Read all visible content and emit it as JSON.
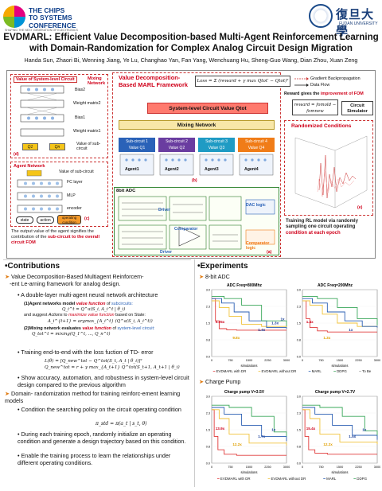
{
  "header": {
    "logo_left": {
      "line1": "THE CHIPS",
      "line2": "TO SYSTEMS",
      "line2b": "CONFERENCE",
      "tagline": "SHAPING THE NEXT GENERATION OF ELECTRONICS"
    },
    "logo_right": {
      "cn": "復旦大學",
      "en": "FUDAN UNIVERSITY"
    },
    "title_line1": "EVDMARL: Efficient Value Decomposition-based Multi-Agent Reinforcement Learning",
    "title_line2": "with Domain-Randomization for Complex Analog Circuit Design Migration",
    "authors": "Handa Sun, Zhaori Bi, Wenning Jiang, Ye Lu, Changhao Yan, Fan Yang, Wenchuang Hu, Sheng-Guo Wang, Dian Zhou, Xuan Zeng"
  },
  "framework": {
    "mixing_net_panel": {
      "title": "Value of System-level Circuit",
      "side_title": "Mixing Network",
      "layers": [
        "Bias2",
        "Weight matrix2",
        "Bias1",
        "Weight matrix1"
      ],
      "q1": "Q1",
      "qn": "Qn",
      "value_sub": "Value of sub-circuit",
      "tag": "(d)"
    },
    "agent_panel": {
      "title": "Agent Network",
      "value_sub": "Value of sub-circuit",
      "layers": [
        "FC layer",
        "MLP",
        "encoder"
      ],
      "state": "state",
      "action": "action",
      "operating": "operating condition",
      "tag": "(c)",
      "caption_pre": "The output value of the agent signifies the contribution of the ",
      "caption_red": "sub-circuit to the overall circuit FOM"
    },
    "center": {
      "heading1": "Value Decomposition-",
      "heading2": "Based MARL Framework",
      "loss": "Loss = Σ (reward + γ max Qtot′ − Qtot)²",
      "system_value": "System-level Circuit Value Qtot",
      "mixing": "Mixing Network",
      "subs": [
        {
          "name": "Sub-circuit 1",
          "val": "Value Q1",
          "color": "#2a62b8"
        },
        {
          "name": "Sub-circuit 2",
          "val": "Value Q2",
          "color": "#6a3da0"
        },
        {
          "name": "Sub-circuit 3",
          "val": "Value Q3",
          "color": "#1f9bc4"
        },
        {
          "name": "Sub-circuit 4",
          "val": "Value Q4",
          "color": "#f07c18"
        }
      ],
      "agents": [
        "Agent1",
        "Agent2",
        "Agent3",
        "Agent4"
      ],
      "tag": "(b)",
      "adc": "8bit ADC",
      "driver": "Driver",
      "comparator": "Comparator",
      "dac": "DAC logic",
      "comp_logic": "Comparator logic",
      "tag_a": "(a)"
    },
    "right": {
      "legend_grad": "Gradient Backpropagation",
      "legend_flow": "Data Flow",
      "reward_pre": "Reward gives the ",
      "reward_red": "improvement of FOM",
      "reward_formula": "reward = fomold − fomnew",
      "simulator": "Circuit Simulator",
      "rand_title": "Randomized Conditions",
      "tag": "(e)",
      "caption_pre": "Training RL model via randomly sampling one circuit operating ",
      "caption_red": "condition at each epoch"
    }
  },
  "contributions": {
    "heading": "Contributions",
    "b1_pre": "Value Decomposition-Based Multiagent Reinforcem-",
    "b1_post": "-ent Le-arning framework for analog design.",
    "sub1": "A double-layer multi-agent neural network architecture",
    "agent_line_pre": "(1)Agent networks model ",
    "agent_line_red": "value function",
    "agent_line_mid": " of ",
    "agent_line_blue": "subcircuits:",
    "agent_eq": "Q_i^t = Q^a(S_i, A_i^t | θ_i)",
    "agent_line2_pre": "and suggest ",
    "agent_line2_it": "Actions",
    "agent_line2_mid": " to ",
    "agent_line2_red": "maximize value function",
    "agent_line2_post": " based on State:",
    "agent_eq2": "A_i^{t+1} = argmax_{A_i^t} (Q^a(S_i, A_i^t))",
    "mix_line_pre": "(2)Mixing network evaluates ",
    "mix_line_red": "value function",
    "mix_line_mid": " of ",
    "mix_line_blue": "system-level circuit:",
    "mix_eq": "Q_tot^t = mixing(Q_1^t, ..., Q_n^t)",
    "sub2": "Training end-to-end with the loss fuction of TD- error",
    "loss_eq1": "L(θ) = [Q_new^tot − Q^tot(S_t, A_t | θ_i)]²",
    "loss_eq2": "Q_new^tot = r + γ max_{A_t+1} Q^tot(S_t+1, A_t+1 | θ_i)",
    "sub3": "Show accuracy, automation, and robustness in system-level circuit design compared to the previous algorithm",
    "b2": "Domain- randomization method for training reinforc-ement learning models",
    "sub4": "Condition the searching policy on the circuit operating condition",
    "policy_eq": "π_std = π(a_t | s_t, θ)",
    "sub5": "During each training epoch, randomly initialize an operating condition and generate a design trajectory based on this condition.",
    "sub6": "Enable the training process to learn the relationships under different operating conditions."
  },
  "experiments": {
    "heading": "Experiments",
    "adc_label": "8-bit ADC",
    "cp_label": "Charge Pump",
    "legend_adc": [
      "EVDMARL with DR",
      "EVDMARL without DR",
      "MARL",
      "DDPG",
      "To Be"
    ],
    "legend_cp": [
      "EVDMARL with DR",
      "EVDMARL without DR",
      "MARL",
      "DDPG"
    ],
    "x_label": "simulations"
  },
  "chart_data": [
    {
      "type": "line",
      "title": "ADC Freq=800Mhz",
      "xlabel": "simulations",
      "annotations": [
        "0.25x",
        "9.8x",
        "1.4x",
        "1.3x",
        "1x"
      ],
      "xlim": [
        0,
        3000
      ],
      "series": [
        {
          "name": "EVDMARL with DR",
          "color": "#e03a3a",
          "x": [
            0,
            150,
            300,
            600,
            1000,
            2000,
            3000
          ],
          "y": [
            2.6,
            1.6,
            1.25,
            1.2,
            1.18,
            1.18,
            1.18
          ]
        },
        {
          "name": "EVDMARL without DR",
          "color": "#f0c23a",
          "x": [
            0,
            300,
            700,
            1200,
            2000,
            3000
          ],
          "y": [
            2.5,
            2.2,
            1.8,
            1.45,
            1.35,
            1.3
          ]
        },
        {
          "name": "MARL",
          "color": "#2b5fb3",
          "x": [
            0,
            400,
            900,
            1500,
            2200,
            3000
          ],
          "y": [
            2.6,
            2.4,
            2.0,
            1.6,
            1.3,
            1.25
          ]
        },
        {
          "name": "DDPG",
          "color": "#3aa85a",
          "x": [
            0,
            500,
            1200,
            2000,
            3000
          ],
          "y": [
            2.7,
            2.6,
            2.3,
            1.6,
            1.35
          ]
        }
      ]
    },
    {
      "type": "line",
      "title": "ADC Freq=200Mhz",
      "xlabel": "simulations",
      "annotations": [
        "1.4x",
        "1.3x",
        "1x"
      ],
      "xlim": [
        0,
        3000
      ],
      "series": [
        {
          "name": "EVDMARL with DR",
          "color": "#e03a3a",
          "x": [
            0,
            150,
            300,
            600,
            1000,
            2000,
            3000
          ],
          "y": [
            2.5,
            1.7,
            1.3,
            1.15,
            1.1,
            1.1,
            1.1
          ]
        },
        {
          "name": "EVDMARL without DR",
          "color": "#f0c23a",
          "x": [
            0,
            300,
            800,
            1400,
            2200,
            3000
          ],
          "y": [
            2.5,
            2.3,
            1.9,
            1.5,
            1.35,
            1.3
          ]
        },
        {
          "name": "MARL",
          "color": "#2b5fb3",
          "x": [
            0,
            400,
            1000,
            1700,
            2400,
            3000
          ],
          "y": [
            2.6,
            2.4,
            2.0,
            1.6,
            1.35,
            1.3
          ]
        },
        {
          "name": "DDPG",
          "color": "#3aa85a",
          "x": [
            0,
            600,
            1400,
            2200,
            3000
          ],
          "y": [
            2.7,
            2.6,
            2.2,
            1.7,
            1.4
          ]
        }
      ]
    },
    {
      "type": "line",
      "title": "Charge pump V=3.5V",
      "xlabel": "simulations",
      "annotations": [
        "13.9x",
        "12.2x",
        "1.7x",
        "1x"
      ],
      "xlim": [
        0,
        3000
      ],
      "series": [
        {
          "name": "EVDMARL with DR",
          "color": "#e03a3a",
          "x": [
            0,
            100,
            250,
            500,
            1000,
            3000
          ],
          "y": [
            2.4,
            1.2,
            0.6,
            0.4,
            0.35,
            0.35
          ]
        },
        {
          "name": "EVDMARL without DR",
          "color": "#f0c23a",
          "x": [
            0,
            300,
            700,
            1500,
            3000
          ],
          "y": [
            2.4,
            2.0,
            1.3,
            0.9,
            0.8
          ]
        },
        {
          "name": "MARL",
          "color": "#2b5fb3",
          "x": [
            0,
            500,
            1200,
            2000,
            3000
          ],
          "y": [
            2.5,
            2.2,
            1.7,
            1.2,
            1.0
          ]
        },
        {
          "name": "DDPG",
          "color": "#3aa85a",
          "x": [
            0,
            700,
            1600,
            2500,
            3000
          ],
          "y": [
            2.6,
            2.5,
            2.1,
            1.4,
            1.2
          ]
        }
      ]
    },
    {
      "type": "line",
      "title": "Charge pump V=2.7V",
      "xlabel": "simulations",
      "annotations": [
        "15.4x",
        "12.2x",
        "1.5x",
        "1x"
      ],
      "xlim": [
        0,
        3000
      ],
      "series": [
        {
          "name": "EVDMARL with DR",
          "color": "#e03a3a",
          "x": [
            0,
            100,
            250,
            500,
            1000,
            3000
          ],
          "y": [
            2.4,
            1.2,
            0.6,
            0.45,
            0.4,
            0.4
          ]
        },
        {
          "name": "EVDMARL without DR",
          "color": "#f0c23a",
          "x": [
            0,
            300,
            700,
            1500,
            3000
          ],
          "y": [
            2.4,
            2.0,
            1.3,
            0.95,
            0.85
          ]
        },
        {
          "name": "MARL",
          "color": "#2b5fb3",
          "x": [
            0,
            500,
            1200,
            2000,
            3000
          ],
          "y": [
            2.5,
            2.2,
            1.7,
            1.25,
            1.05
          ]
        },
        {
          "name": "DDPG",
          "color": "#3aa85a",
          "x": [
            0,
            700,
            1600,
            2500,
            3000
          ],
          "y": [
            2.6,
            2.5,
            2.1,
            1.45,
            1.25
          ]
        }
      ]
    }
  ]
}
